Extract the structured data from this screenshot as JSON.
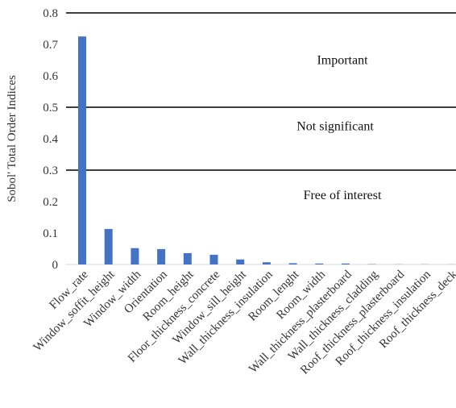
{
  "chart_data": {
    "type": "bar",
    "ylabel": "Sobol' Total Order Indices",
    "ylim": [
      0,
      0.8
    ],
    "yticks": [
      "0",
      "0.1",
      "0.2",
      "0.3",
      "0.4",
      "0.5",
      "0.6",
      "0.7",
      "0.8"
    ],
    "categories": [
      "Flow_rate",
      "Window_soffit_height",
      "Window_width",
      "Orientation",
      "Room_height",
      "Floor_thickness_concrete",
      "Window_sill_height",
      "Wall_thickness_insulation",
      "Room_lenght",
      "Room_width",
      "Wall_thickness_plasterboard",
      "Wall_thickness_cladding",
      "Roof_thickness_plasterboard",
      "Roof_thickness_insulation",
      "Roof_thickness_deck"
    ],
    "values": [
      0.725,
      0.113,
      0.052,
      0.049,
      0.036,
      0.031,
      0.016,
      0.007,
      0.004,
      0.003,
      0.003,
      0.001,
      0.0005,
      0.0005,
      0.0003
    ],
    "bar_color": "#4472C4",
    "threshold_lines": [
      0.3,
      0.5,
      0.8
    ],
    "zones": [
      {
        "label": "Important",
        "y": 0.65
      },
      {
        "label": "Not significant",
        "y": 0.44
      },
      {
        "label": "Free of interest",
        "y": 0.22
      }
    ],
    "grid": false
  }
}
